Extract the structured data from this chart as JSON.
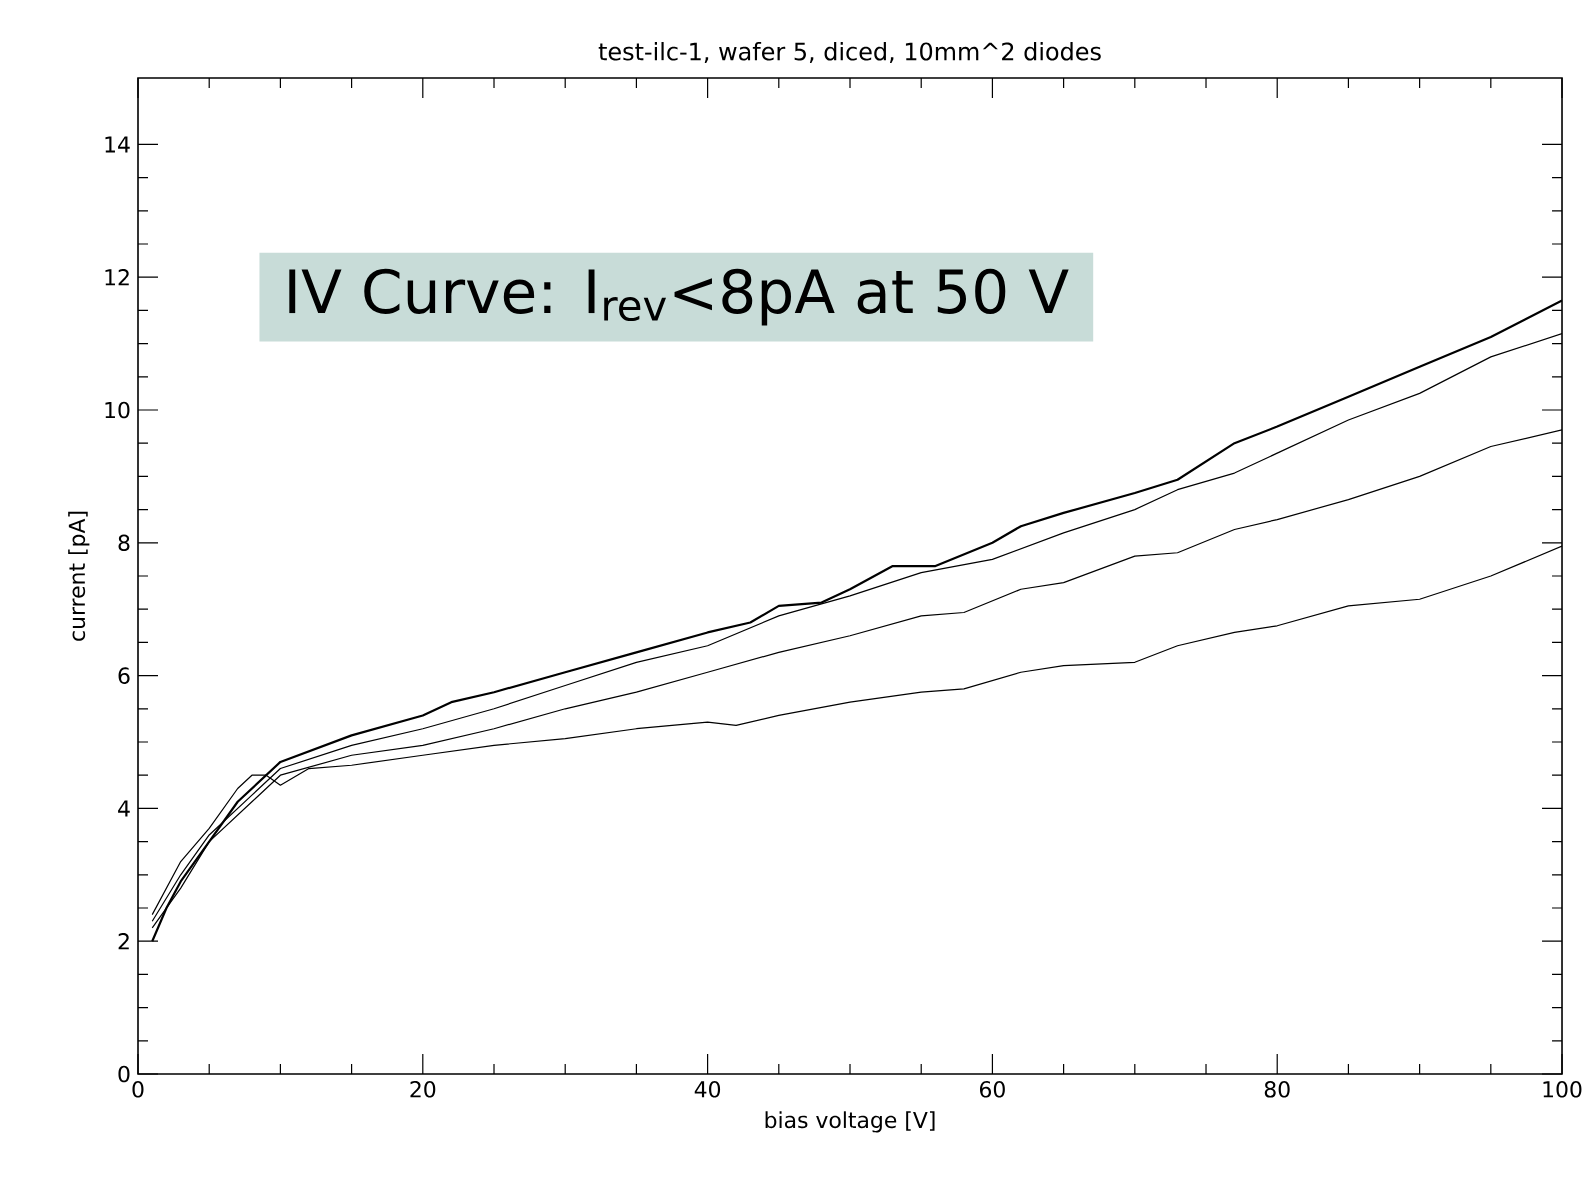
{
  "chart_data": {
    "type": "line",
    "title": "test-ilc-1, wafer 5, diced, 10mm^2 diodes",
    "xlabel": "bias voltage [V]",
    "ylabel": "current [pA]",
    "annotations": [
      "IV Curve: I$_{rev}$<8pA at 50 V"
    ],
    "xlim": [
      0,
      100
    ],
    "xticks": [
      0,
      20,
      40,
      60,
      80,
      100
    ],
    "ylim": [
      0,
      15
    ],
    "yticks": [
      0,
      2,
      4,
      6,
      8,
      10,
      12,
      14
    ],
    "series": [
      {
        "color": "#000000",
        "x": [
          1,
          2,
          3,
          5,
          7,
          10,
          15,
          20,
          22,
          25,
          30,
          35,
          40,
          43,
          45,
          48,
          50,
          53,
          56,
          60,
          62,
          65,
          70,
          73,
          77,
          80,
          85,
          90,
          95,
          100
        ],
        "values": [
          2.0,
          2.5,
          2.9,
          3.5,
          4.1,
          4.7,
          5.1,
          5.4,
          5.6,
          5.75,
          6.05,
          6.35,
          6.65,
          6.8,
          7.05,
          7.1,
          7.3,
          7.65,
          7.65,
          8.0,
          8.25,
          8.45,
          8.75,
          8.95,
          9.5,
          9.75,
          10.2,
          10.65,
          11.1,
          11.65
        ]
      },
      {
        "color": "#000000",
        "x": [
          1,
          3,
          5,
          8,
          10,
          15,
          20,
          25,
          30,
          35,
          40,
          45,
          50,
          55,
          60,
          65,
          70,
          73,
          77,
          80,
          85,
          90,
          95,
          100
        ],
        "values": [
          2.3,
          3.0,
          3.6,
          4.2,
          4.6,
          4.95,
          5.2,
          5.5,
          5.85,
          6.2,
          6.45,
          6.9,
          7.2,
          7.55,
          7.75,
          8.15,
          8.5,
          8.8,
          9.05,
          9.35,
          9.85,
          10.25,
          10.8,
          11.15
        ]
      },
      {
        "color": "#000000",
        "x": [
          1,
          3,
          5,
          8,
          10,
          15,
          20,
          25,
          30,
          35,
          40,
          45,
          50,
          55,
          58,
          62,
          65,
          70,
          73,
          77,
          80,
          85,
          90,
          95,
          100
        ],
        "values": [
          2.2,
          2.8,
          3.5,
          4.1,
          4.5,
          4.8,
          4.95,
          5.2,
          5.5,
          5.75,
          6.05,
          6.35,
          6.6,
          6.9,
          6.95,
          7.3,
          7.4,
          7.8,
          7.85,
          8.2,
          8.35,
          8.65,
          9.0,
          9.45,
          9.7
        ]
      },
      {
        "color": "#000000",
        "x": [
          1,
          3,
          5,
          7,
          8,
          9,
          10,
          12,
          15,
          20,
          25,
          30,
          35,
          40,
          42,
          45,
          50,
          55,
          58,
          62,
          65,
          70,
          73,
          77,
          80,
          85,
          90,
          95,
          100
        ],
        "values": [
          2.4,
          3.2,
          3.7,
          4.3,
          4.5,
          4.5,
          4.35,
          4.6,
          4.65,
          4.8,
          4.95,
          5.05,
          5.2,
          5.3,
          5.25,
          5.4,
          5.6,
          5.75,
          5.8,
          6.05,
          6.15,
          6.2,
          6.45,
          6.65,
          6.75,
          7.05,
          7.15,
          7.5,
          7.95
        ]
      }
    ]
  }
}
